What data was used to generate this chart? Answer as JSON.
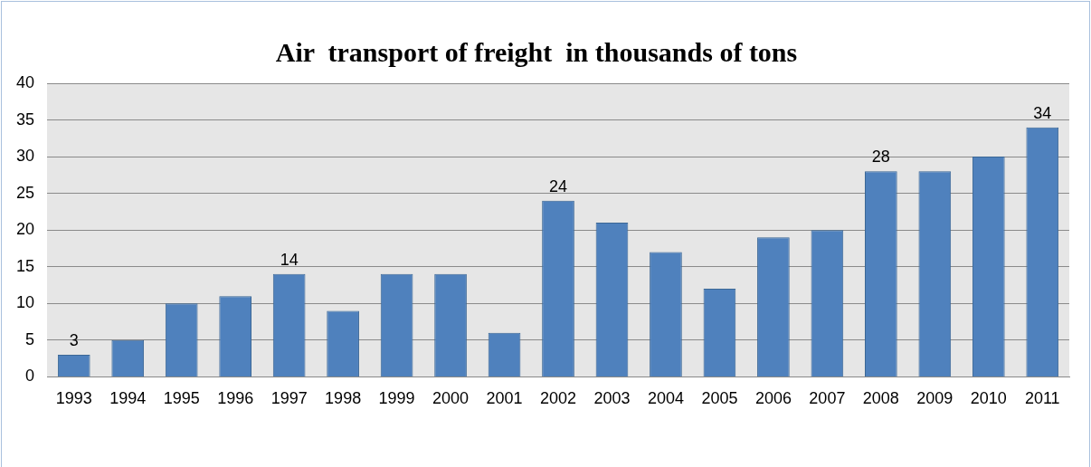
{
  "chart_data": {
    "type": "bar",
    "title": "Air  transport of freight  in thousands of tons",
    "categories": [
      "1993",
      "1994",
      "1995",
      "1996",
      "1997",
      "1998",
      "1999",
      "2000",
      "2001",
      "2002",
      "2003",
      "2004",
      "2005",
      "2006",
      "2007",
      "2008",
      "2009",
      "2010",
      "2011"
    ],
    "values": [
      3,
      5,
      10,
      11,
      14,
      9,
      14,
      14,
      6,
      24,
      21,
      17,
      12,
      19,
      20,
      28,
      28,
      30,
      34
    ],
    "value_labels": [
      "3",
      null,
      null,
      null,
      "14",
      null,
      null,
      null,
      null,
      "24",
      null,
      null,
      null,
      null,
      null,
      "28",
      null,
      null,
      "34"
    ],
    "color": "#4f81bd",
    "ylim": [
      0,
      40
    ],
    "yticks": [
      0,
      5,
      10,
      15,
      20,
      25,
      30,
      35,
      40
    ],
    "grid": "y",
    "legend": false
  }
}
